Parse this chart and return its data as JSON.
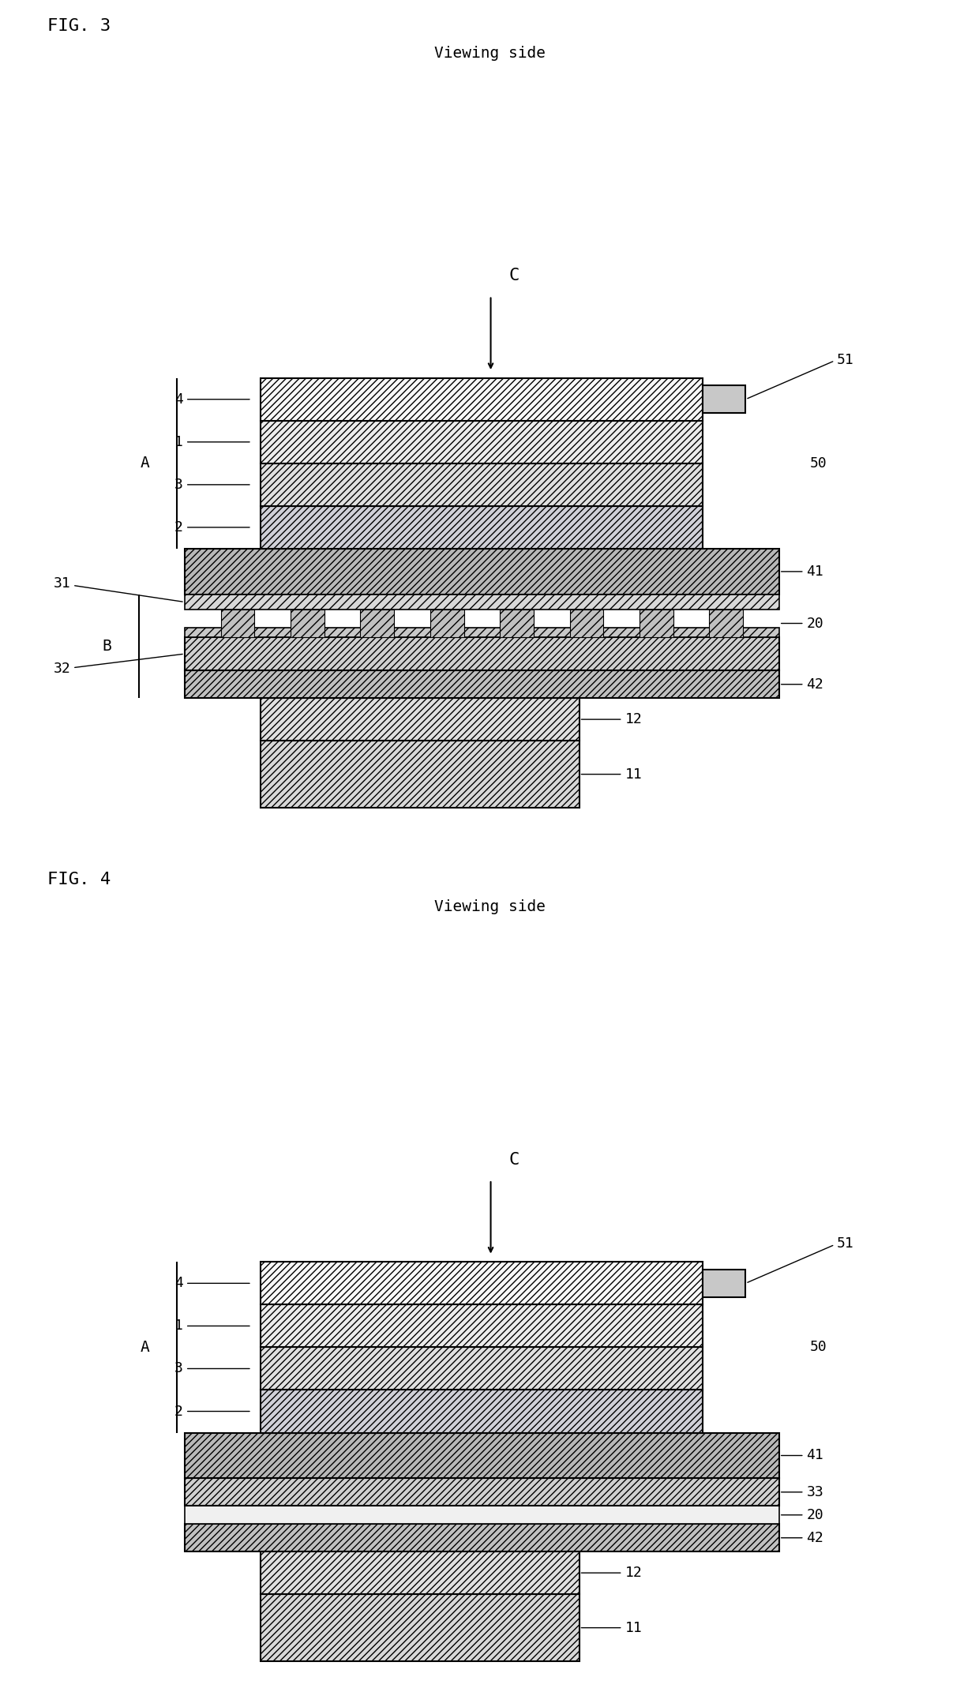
{
  "bg_color": "#ffffff",
  "text_color": "#000000",
  "fig3": {
    "title": "FIG. 3",
    "subtitle": "Viewing side"
  },
  "fig4": {
    "title": "FIG. 4",
    "subtitle": "Viewing side"
  }
}
